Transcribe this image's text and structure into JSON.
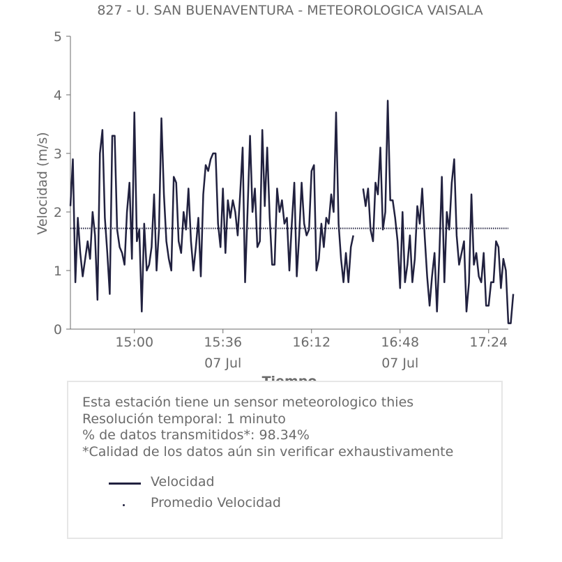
{
  "chart_data": {
    "type": "line",
    "title": "827 - U. SAN BUENAVENTURA - METEOROLOGICA VAISALA",
    "xlabel": "Tiempo",
    "ylabel": "Velocidad (m/s)",
    "ylim": [
      0,
      5
    ],
    "yticks": [
      "0",
      "1",
      "2",
      "3",
      "4",
      "5"
    ],
    "xlim_minutes": [
      "14:34",
      "17:32"
    ],
    "xticks": [
      {
        "time": "15:00",
        "label": "15:00",
        "sublabel": ""
      },
      {
        "time": "15:36",
        "label": "15:36",
        "sublabel": "07 Jul"
      },
      {
        "time": "16:12",
        "label": "16:12",
        "sublabel": ""
      },
      {
        "time": "16:48",
        "label": "16:48",
        "sublabel": "07 Jul"
      },
      {
        "time": "17:24",
        "label": "17:24",
        "sublabel": ""
      }
    ],
    "grid": false,
    "start_time": "14:34",
    "series": [
      {
        "name": "Velocidad",
        "style": "line",
        "color": "#21213f",
        "values": [
          2.1,
          2.9,
          0.8,
          1.9,
          1.3,
          0.9,
          1.2,
          1.5,
          1.2,
          2.0,
          1.6,
          0.5,
          3.0,
          3.4,
          1.9,
          1.3,
          0.6,
          3.3,
          3.3,
          1.7,
          1.4,
          1.3,
          1.1,
          2.0,
          2.5,
          1.2,
          3.7,
          1.5,
          1.7,
          0.3,
          1.8,
          1.0,
          1.1,
          1.4,
          2.3,
          1.0,
          1.7,
          3.6,
          2.3,
          1.5,
          1.2,
          1.0,
          2.6,
          2.5,
          1.5,
          1.3,
          2.0,
          1.7,
          2.4,
          1.5,
          1.0,
          1.4,
          1.9,
          0.9,
          2.3,
          2.8,
          2.7,
          2.9,
          3.0,
          3.0,
          1.8,
          1.4,
          2.4,
          1.3,
          2.2,
          1.9,
          2.2,
          2.0,
          1.6,
          2.3,
          3.1,
          0.8,
          2.0,
          3.3,
          2.0,
          2.4,
          1.4,
          1.5,
          3.4,
          2.1,
          3.1,
          1.9,
          1.1,
          1.1,
          2.4,
          2.0,
          2.2,
          1.8,
          1.9,
          1.0,
          1.8,
          2.5,
          0.9,
          1.6,
          2.5,
          1.8,
          1.6,
          1.7,
          2.7,
          2.8,
          1.0,
          1.2,
          1.8,
          1.4,
          1.9,
          1.8,
          2.3,
          2.0,
          3.7,
          1.8,
          1.2,
          0.8,
          1.3,
          0.8,
          1.4,
          1.6,
          null,
          null,
          null,
          2.4,
          2.1,
          2.4,
          1.7,
          1.5,
          2.5,
          2.3,
          3.1,
          1.7,
          2.0,
          3.9,
          2.2,
          2.2,
          1.9,
          1.5,
          0.7,
          2.0,
          0.8,
          1.1,
          1.6,
          0.8,
          1.2,
          2.1,
          1.8,
          2.4,
          1.6,
          0.9,
          0.4,
          0.9,
          1.3,
          0.3,
          1.3,
          2.6,
          0.8,
          2.0,
          1.7,
          2.5,
          2.9,
          1.6,
          1.1,
          1.3,
          1.5,
          0.3,
          0.8,
          2.3,
          1.1,
          1.3,
          0.9,
          0.8,
          1.3,
          0.4,
          0.4,
          0.8,
          0.8,
          1.5,
          1.4,
          0.7,
          1.2,
          1.0,
          0.1,
          0.1,
          0.6
        ]
      },
      {
        "name": "Promedio Velocidad",
        "style": "dotted",
        "color": "#21213f",
        "constant": 1.72
      }
    ]
  },
  "info": {
    "lines": [
      "Esta estación tiene un sensor meteorologico thies",
      "Resolución temporal: 1 minuto",
      "% de datos transmitidos*: 98.34%",
      "*Calidad de los datos aún sin verificar exhaustivamente"
    ]
  },
  "legend": {
    "items": [
      "Velocidad",
      "Promedio Velocidad"
    ]
  }
}
